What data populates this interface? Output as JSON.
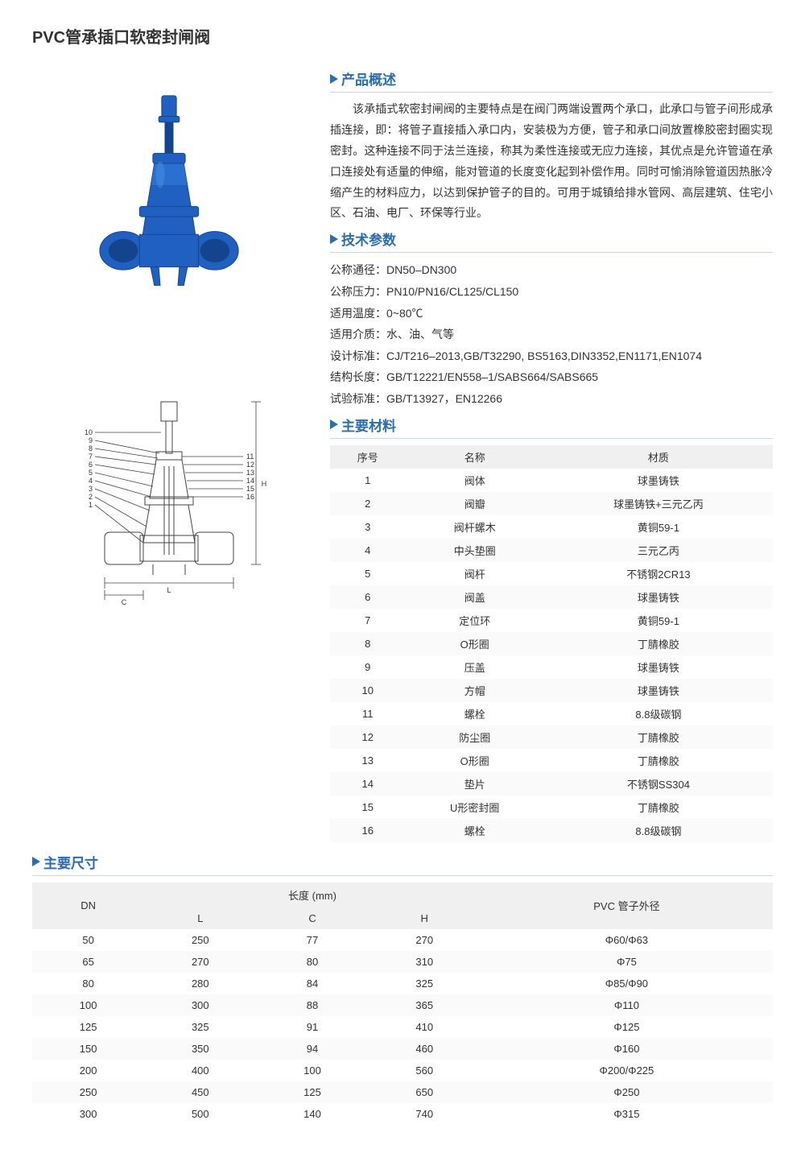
{
  "title": "PVC管承插口软密封闸阀",
  "colors": {
    "heading": "#2a6db0",
    "heading_border": "#c8d8e8",
    "text": "#333333",
    "table_header_bg": "#f0f0f0",
    "table_alt_bg": "#fafafa",
    "valve_blue": "#2060c0",
    "valve_blue_dark": "#15448f",
    "diagram_line": "#444444"
  },
  "overview": {
    "heading": "产品概述",
    "text": "该承插式软密封闸阀的主要特点是在阀门两端设置两个承口，此承口与管子间形成承插连接，即：将管子直接插入承口内，安装极为方便，管子和承口间放置橡胶密封圈实现密封。这种连接不同于法兰连接，称其为柔性连接或无应力连接，其优点是允许管道在承口连接处有适量的伸缩，能对管道的长度变化起到补偿作用。同时可愉消除管道因热胀冷缩产生的材料应力，以达到保护管子的目的。可用于城镇给排水管网、高层建筑、住宅小区、石油、电厂、环保等行业。"
  },
  "tech": {
    "heading": "技术参数",
    "lines": [
      "公称通径：DN50–DN300",
      "公称压力：PN10/PN16/CL125/CL150",
      "适用温度：0~80℃",
      "适用介质：水、油、气等",
      "设计标准：CJ/T216–2013,GB/T32290, BS5163,DIN3352,EN1171,EN1074",
      "结构长度：GB/T12221/EN558–1/SABS664/SABS665",
      "试验标准：GB/T13927，EN12266"
    ]
  },
  "materials": {
    "heading": "主要材料",
    "columns": [
      "序号",
      "名称",
      "材质"
    ],
    "rows": [
      [
        "1",
        "阀体",
        "球墨铸铁"
      ],
      [
        "2",
        "阀瓣",
        "球墨铸铁+三元乙丙"
      ],
      [
        "3",
        "阀杆螺木",
        "黄铜59-1"
      ],
      [
        "4",
        "中头垫圈",
        "三元乙丙"
      ],
      [
        "5",
        "阀杆",
        "不锈钢2CR13"
      ],
      [
        "6",
        "阀盖",
        "球墨铸铁"
      ],
      [
        "7",
        "定位环",
        "黄铜59-1"
      ],
      [
        "8",
        "O形圈",
        "丁腈橡胶"
      ],
      [
        "9",
        "压盖",
        "球墨铸铁"
      ],
      [
        "10",
        "方帽",
        "球墨铸铁"
      ],
      [
        "11",
        "螺栓",
        "8.8级碳钢"
      ],
      [
        "12",
        "防尘圈",
        "丁腈橡胶"
      ],
      [
        "13",
        "O形圈",
        "丁腈橡胶"
      ],
      [
        "14",
        "垫片",
        "不锈钢SS304"
      ],
      [
        "15",
        "U形密封圈",
        "丁腈橡胶"
      ],
      [
        "16",
        "螺栓",
        "8.8级碳钢"
      ]
    ]
  },
  "diagram": {
    "left_labels": [
      "10",
      "9",
      "8",
      "7",
      "6",
      "5",
      "4",
      "3",
      "2",
      "1"
    ],
    "right_labels": [
      "11",
      "12",
      "13",
      "14",
      "15",
      "16"
    ],
    "dim_labels": {
      "L": "L",
      "C": "C",
      "H": "H"
    }
  },
  "dimensions": {
    "heading": "主要尺寸",
    "header_group": "长度 (mm)",
    "columns": [
      "DN",
      "L",
      "C",
      "H",
      "PVC 管子外径"
    ],
    "rows": [
      [
        "50",
        "250",
        "77",
        "270",
        "Φ60/Φ63"
      ],
      [
        "65",
        "270",
        "80",
        "310",
        "Φ75"
      ],
      [
        "80",
        "280",
        "84",
        "325",
        "Φ85/Φ90"
      ],
      [
        "100",
        "300",
        "88",
        "365",
        "Φ110"
      ],
      [
        "125",
        "325",
        "91",
        "410",
        "Φ125"
      ],
      [
        "150",
        "350",
        "94",
        "460",
        "Φ160"
      ],
      [
        "200",
        "400",
        "100",
        "560",
        "Φ200/Φ225"
      ],
      [
        "250",
        "450",
        "125",
        "650",
        "Φ250"
      ],
      [
        "300",
        "500",
        "140",
        "740",
        "Φ315"
      ]
    ]
  }
}
